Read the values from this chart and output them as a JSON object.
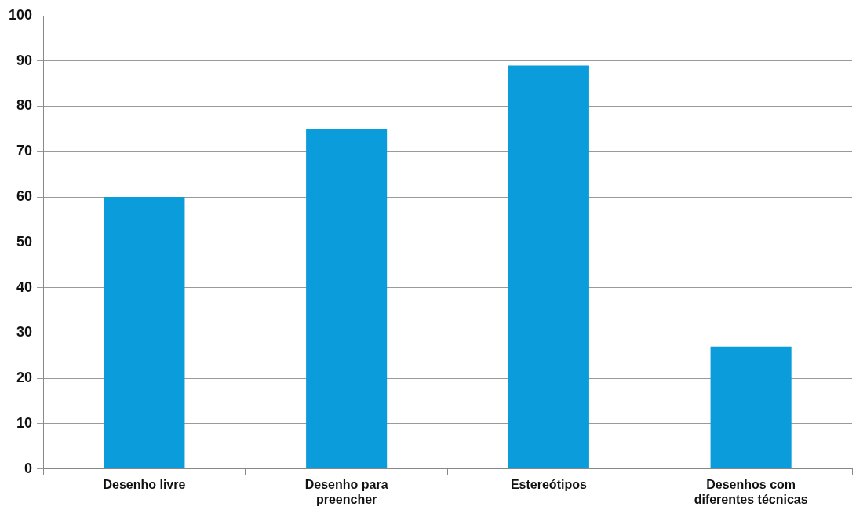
{
  "chart_data": {
    "type": "bar",
    "categories": [
      "Desenho livre",
      "Desenho para preencher",
      "Estereótipos",
      "Desenhos com diferentes técnicas"
    ],
    "values": [
      60,
      75,
      89,
      27
    ],
    "color": "#0b9ddb",
    "ylim": [
      0,
      100
    ],
    "yticks": [
      0,
      10,
      20,
      30,
      40,
      50,
      60,
      70,
      80,
      90,
      100
    ],
    "grid": "y",
    "legend": false
  }
}
